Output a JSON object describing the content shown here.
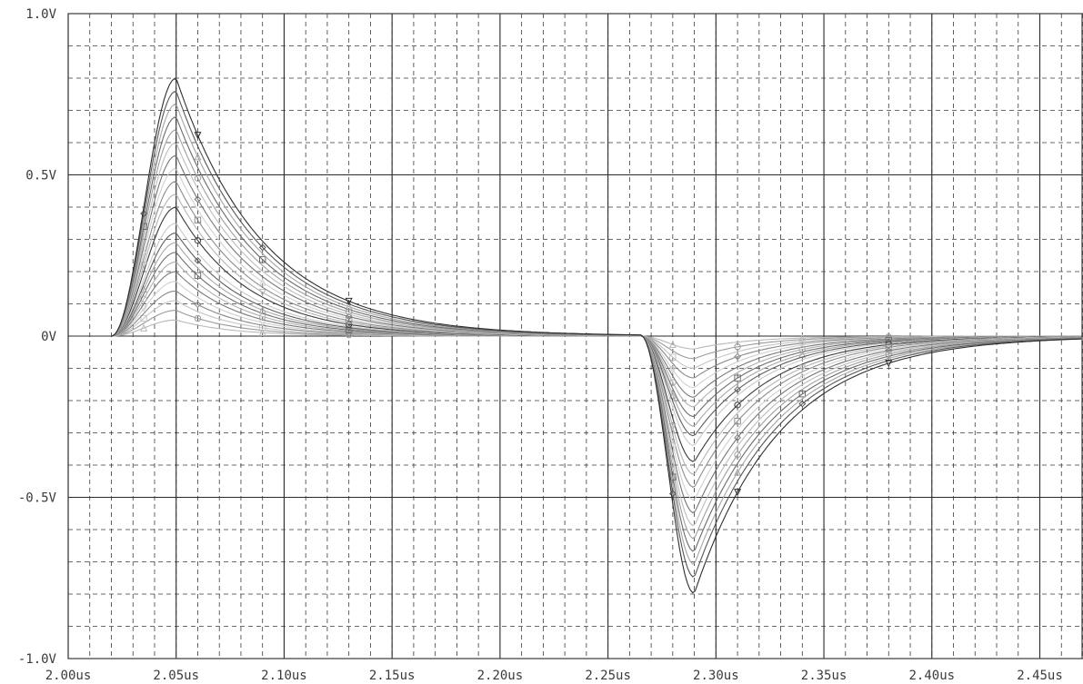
{
  "chart_data": {
    "type": "line",
    "title": "",
    "xlabel": "",
    "ylabel": "",
    "xlim": [
      2.0,
      2.47
    ],
    "ylim": [
      -1.0,
      1.0
    ],
    "grid": true,
    "legend": "none",
    "x_ticks": [
      {
        "value": 2.0,
        "label": "2.00us"
      },
      {
        "value": 2.05,
        "label": "2.05us"
      },
      {
        "value": 2.1,
        "label": "2.10us"
      },
      {
        "value": 2.15,
        "label": "2.15us"
      },
      {
        "value": 2.2,
        "label": "2.20us"
      },
      {
        "value": 2.25,
        "label": "2.25us"
      },
      {
        "value": 2.3,
        "label": "2.30us"
      },
      {
        "value": 2.35,
        "label": "2.35us"
      },
      {
        "value": 2.4,
        "label": "2.40us"
      },
      {
        "value": 2.45,
        "label": "2.45us"
      }
    ],
    "y_ticks": [
      {
        "value": 1.0,
        "label": "1.0V"
      },
      {
        "value": 0.5,
        "label": "0.5V"
      },
      {
        "value": 0.0,
        "label": "0V"
      },
      {
        "value": -0.5,
        "label": "-0.5V"
      },
      {
        "value": -1.0,
        "label": "-1.0V"
      }
    ],
    "pulse_shape": {
      "positive_start_us": 2.02,
      "positive_peak_us": 2.05,
      "negative_start_us": 2.265,
      "negative_peak_us": 2.29
    },
    "series_peaks": [
      {
        "pos_peak": 0.05,
        "neg_peak": -0.04,
        "color": "#b8b8b8",
        "marker": "triangle"
      },
      {
        "pos_peak": 0.08,
        "neg_peak": -0.07,
        "color": "#9a9a9a",
        "marker": "circle"
      },
      {
        "pos_peak": 0.11,
        "neg_peak": -0.1,
        "color": "#c4c4c4",
        "marker": "square"
      },
      {
        "pos_peak": 0.14,
        "neg_peak": -0.13,
        "color": "#888888",
        "marker": "diamond"
      },
      {
        "pos_peak": 0.17,
        "neg_peak": -0.16,
        "color": "#cfcfcf",
        "marker": "triangle-down"
      },
      {
        "pos_peak": 0.2,
        "neg_peak": -0.19,
        "color": "#7a7a7a",
        "marker": "none"
      },
      {
        "pos_peak": 0.23,
        "neg_peak": -0.22,
        "color": "#b0b0b0",
        "marker": "circle"
      },
      {
        "pos_peak": 0.26,
        "neg_peak": -0.25,
        "color": "#6e6e6e",
        "marker": "square"
      },
      {
        "pos_peak": 0.29,
        "neg_peak": -0.28,
        "color": "#a8a8a8",
        "marker": "triangle"
      },
      {
        "pos_peak": 0.32,
        "neg_peak": -0.31,
        "color": "#5e5e5e",
        "marker": "diamond"
      },
      {
        "pos_peak": 0.35,
        "neg_peak": -0.34,
        "color": "#c8c8c8",
        "marker": "none"
      },
      {
        "pos_peak": 0.4,
        "neg_peak": -0.39,
        "color": "#3a3a3a",
        "marker": "circle"
      },
      {
        "pos_peak": 0.44,
        "neg_peak": -0.43,
        "color": "#b4b4b4",
        "marker": "triangle-down"
      },
      {
        "pos_peak": 0.48,
        "neg_peak": -0.47,
        "color": "#8c8c8c",
        "marker": "square"
      },
      {
        "pos_peak": 0.52,
        "neg_peak": -0.51,
        "color": "#d0d0d0",
        "marker": "triangle"
      },
      {
        "pos_peak": 0.56,
        "neg_peak": -0.55,
        "color": "#767676",
        "marker": "diamond"
      },
      {
        "pos_peak": 0.6,
        "neg_peak": -0.59,
        "color": "#bcbcbc",
        "marker": "none"
      },
      {
        "pos_peak": 0.64,
        "neg_peak": -0.63,
        "color": "#9e9e9e",
        "marker": "circle"
      },
      {
        "pos_peak": 0.68,
        "neg_peak": -0.67,
        "color": "#6a6a6a",
        "marker": "square"
      },
      {
        "pos_peak": 0.72,
        "neg_peak": -0.71,
        "color": "#a4a4a4",
        "marker": "triangle"
      },
      {
        "pos_peak": 0.76,
        "neg_peak": -0.75,
        "color": "#555555",
        "marker": "diamond"
      },
      {
        "pos_peak": 0.8,
        "neg_peak": -0.8,
        "color": "#2e2e2e",
        "marker": "triangle-down"
      }
    ]
  }
}
